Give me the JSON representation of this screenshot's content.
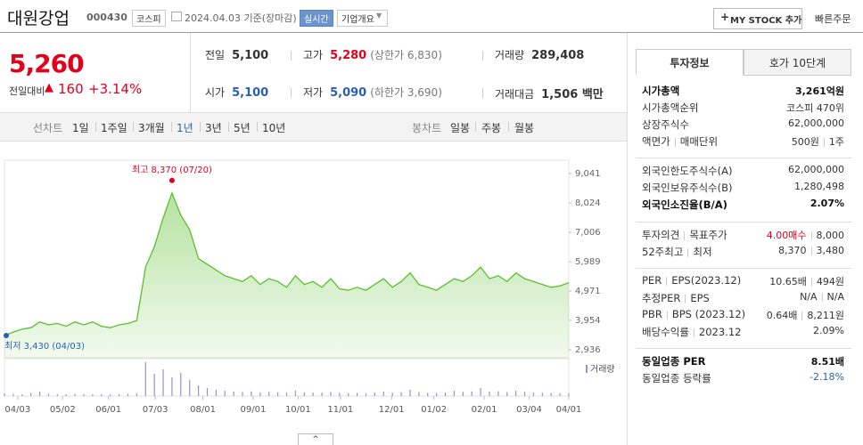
{
  "header": {
    "name": "대원강업",
    "code": "000430",
    "market": "코스피",
    "date": "2024.04.03 기준(장마감)",
    "realtime": "실시간",
    "company_info": "기업개요",
    "my_stock": "MY STOCK 추가",
    "quick_order": "빠른주문"
  },
  "quote": {
    "price": "5,260",
    "change_label": "전일대비",
    "change": "160",
    "change_pct": "+3.14%",
    "stats": [
      {
        "label": "전일",
        "value": "5,100"
      },
      {
        "label": "고가",
        "value": "5,280",
        "note": "(상한가 6,830)"
      },
      {
        "label": "거래량",
        "value": "289,408"
      },
      {
        "label": "시가",
        "value": "5,100"
      },
      {
        "label": "저가",
        "value": "5,090",
        "note": "(하한가 3,690)"
      },
      {
        "label": "거래대금",
        "value": "1,506 백만"
      }
    ]
  },
  "tabs": {
    "line_chart": "선차트",
    "line_periods": [
      "1일",
      "1주일",
      "3개월",
      "1년",
      "3년",
      "5년",
      "10년"
    ],
    "selected": 3,
    "candle_chart": "봉차트",
    "candle_periods": [
      "일봉",
      "주봉",
      "월봉"
    ]
  },
  "chart_data": {
    "type": "line",
    "color": "#5cbf2e",
    "volume_color": "#9b8fd0",
    "volume_label": "거래량",
    "xlim": [
      0,
      64
    ],
    "xticks": [
      {
        "value": 1.5,
        "label": "04/03"
      },
      {
        "value": 6.6,
        "label": "05/02"
      },
      {
        "value": 11.8,
        "label": "06/01"
      },
      {
        "value": 17.1,
        "label": "07/03"
      },
      {
        "value": 22.5,
        "label": "08/01"
      },
      {
        "value": 28.2,
        "label": "09/01"
      },
      {
        "value": 33.3,
        "label": "10/01"
      },
      {
        "value": 38.1,
        "label": "11/01"
      },
      {
        "value": 43.9,
        "label": "12/01"
      },
      {
        "value": 48.7,
        "label": "01/02"
      },
      {
        "value": 54.4,
        "label": "02/01"
      },
      {
        "value": 59.5,
        "label": "03/04"
      },
      {
        "value": 64,
        "label": "04/01"
      }
    ],
    "ylim": [
      2936,
      9041
    ],
    "yticks": [
      {
        "value": 9041,
        "label": "9,041"
      },
      {
        "value": 8024,
        "label": "8,024"
      },
      {
        "value": 7006,
        "label": "7,006"
      },
      {
        "value": 5989,
        "label": "5,989"
      },
      {
        "value": 4971,
        "label": "4,971"
      },
      {
        "value": 3954,
        "label": "3,954"
      },
      {
        "value": 2936,
        "label": "2,936"
      }
    ],
    "values": [
      3430,
      3550,
      3650,
      3700,
      3900,
      3800,
      3850,
      3750,
      3900,
      3800,
      3900,
      3750,
      3700,
      3800,
      3850,
      3950,
      5800,
      6500,
      7500,
      8370,
      7600,
      7100,
      6100,
      5900,
      5700,
      5500,
      5400,
      5300,
      5500,
      5200,
      5400,
      5300,
      5100,
      5500,
      5200,
      5300,
      5100,
      5400,
      5050,
      5000,
      5100,
      5000,
      5200,
      5400,
      5100,
      5300,
      5600,
      5200,
      5100,
      5000,
      5200,
      5400,
      5300,
      5500,
      5800,
      5400,
      5500,
      5300,
      5600,
      5400,
      5300,
      5200,
      5100,
      5150,
      5260
    ],
    "volume": [
      300000,
      250000,
      200000,
      350000,
      500000,
      280000,
      220000,
      200000,
      260000,
      230000,
      210000,
      200000,
      180000,
      220000,
      260000,
      300000,
      3800000,
      2500000,
      3000000,
      2100000,
      2600000,
      1800000,
      1200000,
      900000,
      700000,
      600000,
      500000,
      450000,
      520000,
      400000,
      480000,
      420000,
      380000,
      600000,
      420000,
      400000,
      380000,
      450000,
      350000,
      330000,
      360000,
      300000,
      400000,
      500000,
      380000,
      420000,
      700000,
      450000,
      380000,
      340000,
      400000,
      600000,
      480000,
      520000,
      900000,
      500000,
      550000,
      450000,
      600000,
      480000,
      400000,
      380000,
      350000,
      320000,
      289408
    ],
    "annotations": [
      {
        "text": "최고 8,370 (07/20)",
        "index": 19,
        "color": "#e3001b"
      },
      {
        "text": "최저 3,430 (04/03)",
        "index": 0,
        "color": "#2a5fb0"
      }
    ]
  },
  "side": {
    "tabs": [
      "투자정보",
      "호가 10단계"
    ],
    "sections": [
      [
        {
          "label": [
            "시가총액"
          ],
          "value": [
            "3,261억원"
          ],
          "bold": true
        },
        {
          "label": [
            "시가총액순위"
          ],
          "value": [
            "코스피 470위"
          ]
        },
        {
          "label": [
            "상장주식수"
          ],
          "value": [
            "62,000,000"
          ]
        },
        {
          "label": [
            "액면가",
            "매매단위"
          ],
          "value": [
            "500원",
            "1주"
          ]
        }
      ],
      [
        {
          "label": [
            "외국인한도주식수(A)"
          ],
          "value": [
            "62,000,000"
          ]
        },
        {
          "label": [
            "외국인보유주식수(B)"
          ],
          "value": [
            "1,280,498"
          ]
        },
        {
          "label": [
            "외국인소진율(B/A)"
          ],
          "value": [
            "2.07%"
          ],
          "bold": true
        }
      ],
      [
        {
          "label": [
            "투자의견",
            "목표주가"
          ],
          "value": [
            "4.00매수",
            "8,000"
          ],
          "value_color": "#e3001b"
        },
        {
          "label": [
            "52주최고",
            "최저"
          ],
          "value": [
            "8,370",
            "3,480"
          ]
        }
      ],
      [
        {
          "label": [
            "PER",
            "EPS(2023.12)"
          ],
          "value": [
            "10.65배",
            "494원"
          ]
        },
        {
          "label": [
            "추정PER",
            "EPS"
          ],
          "value": [
            "N/A",
            "N/A"
          ]
        },
        {
          "label": [
            "PBR",
            "BPS (2023.12)"
          ],
          "value": [
            "0.64배",
            "8,211원"
          ]
        },
        {
          "label": [
            "배당수익률",
            "2023.12"
          ],
          "value": [
            "2.09%"
          ]
        }
      ],
      [
        {
          "label": [
            "동일업종 PER"
          ],
          "value": [
            "8.51배"
          ],
          "bold": true
        },
        {
          "label": [
            "동일업종 등락률"
          ],
          "value": [
            "-2.18%"
          ],
          "value_color": "#2a5fb0"
        }
      ]
    ]
  }
}
